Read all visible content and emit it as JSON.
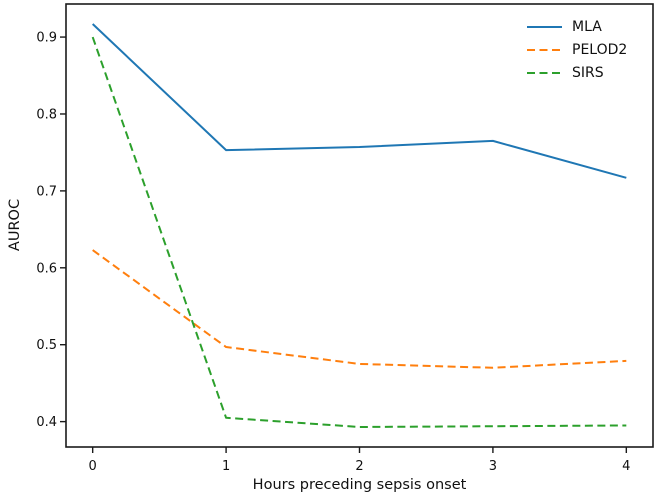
{
  "chart_data": {
    "type": "line",
    "title": "",
    "xlabel": "Hours preceding sepsis onset",
    "ylabel": "AUROC",
    "x": [
      0,
      1,
      2,
      3,
      4
    ],
    "series": [
      {
        "name": "MLA",
        "color": "#1f77b4",
        "linestyle": "solid",
        "values": [
          0.917,
          0.753,
          0.757,
          0.765,
          0.717
        ]
      },
      {
        "name": "PELOD2",
        "color": "#ff7f0e",
        "linestyle": "dashed",
        "values": [
          0.623,
          0.497,
          0.475,
          0.47,
          0.479
        ]
      },
      {
        "name": "SIRS",
        "color": "#2ca02c",
        "linestyle": "dashed",
        "values": [
          0.9,
          0.405,
          0.393,
          0.394,
          0.395
        ]
      }
    ],
    "xlim": [
      -0.2,
      4.2
    ],
    "ylim": [
      0.367,
      0.943
    ],
    "x_ticks": {
      "values": [
        0,
        1,
        2,
        3,
        4
      ],
      "labels": [
        "0",
        "1",
        "2",
        "3",
        "4"
      ]
    },
    "y_ticks": {
      "values": [
        0.4,
        0.5,
        0.6,
        0.7,
        0.8,
        0.9
      ],
      "labels": [
        "0.4",
        "0.5",
        "0.6",
        "0.7",
        "0.8",
        "0.9"
      ]
    },
    "legend_position": "upper right",
    "grid": false,
    "axis_color": "#1a1a1a",
    "background_color": "#ffffff"
  }
}
